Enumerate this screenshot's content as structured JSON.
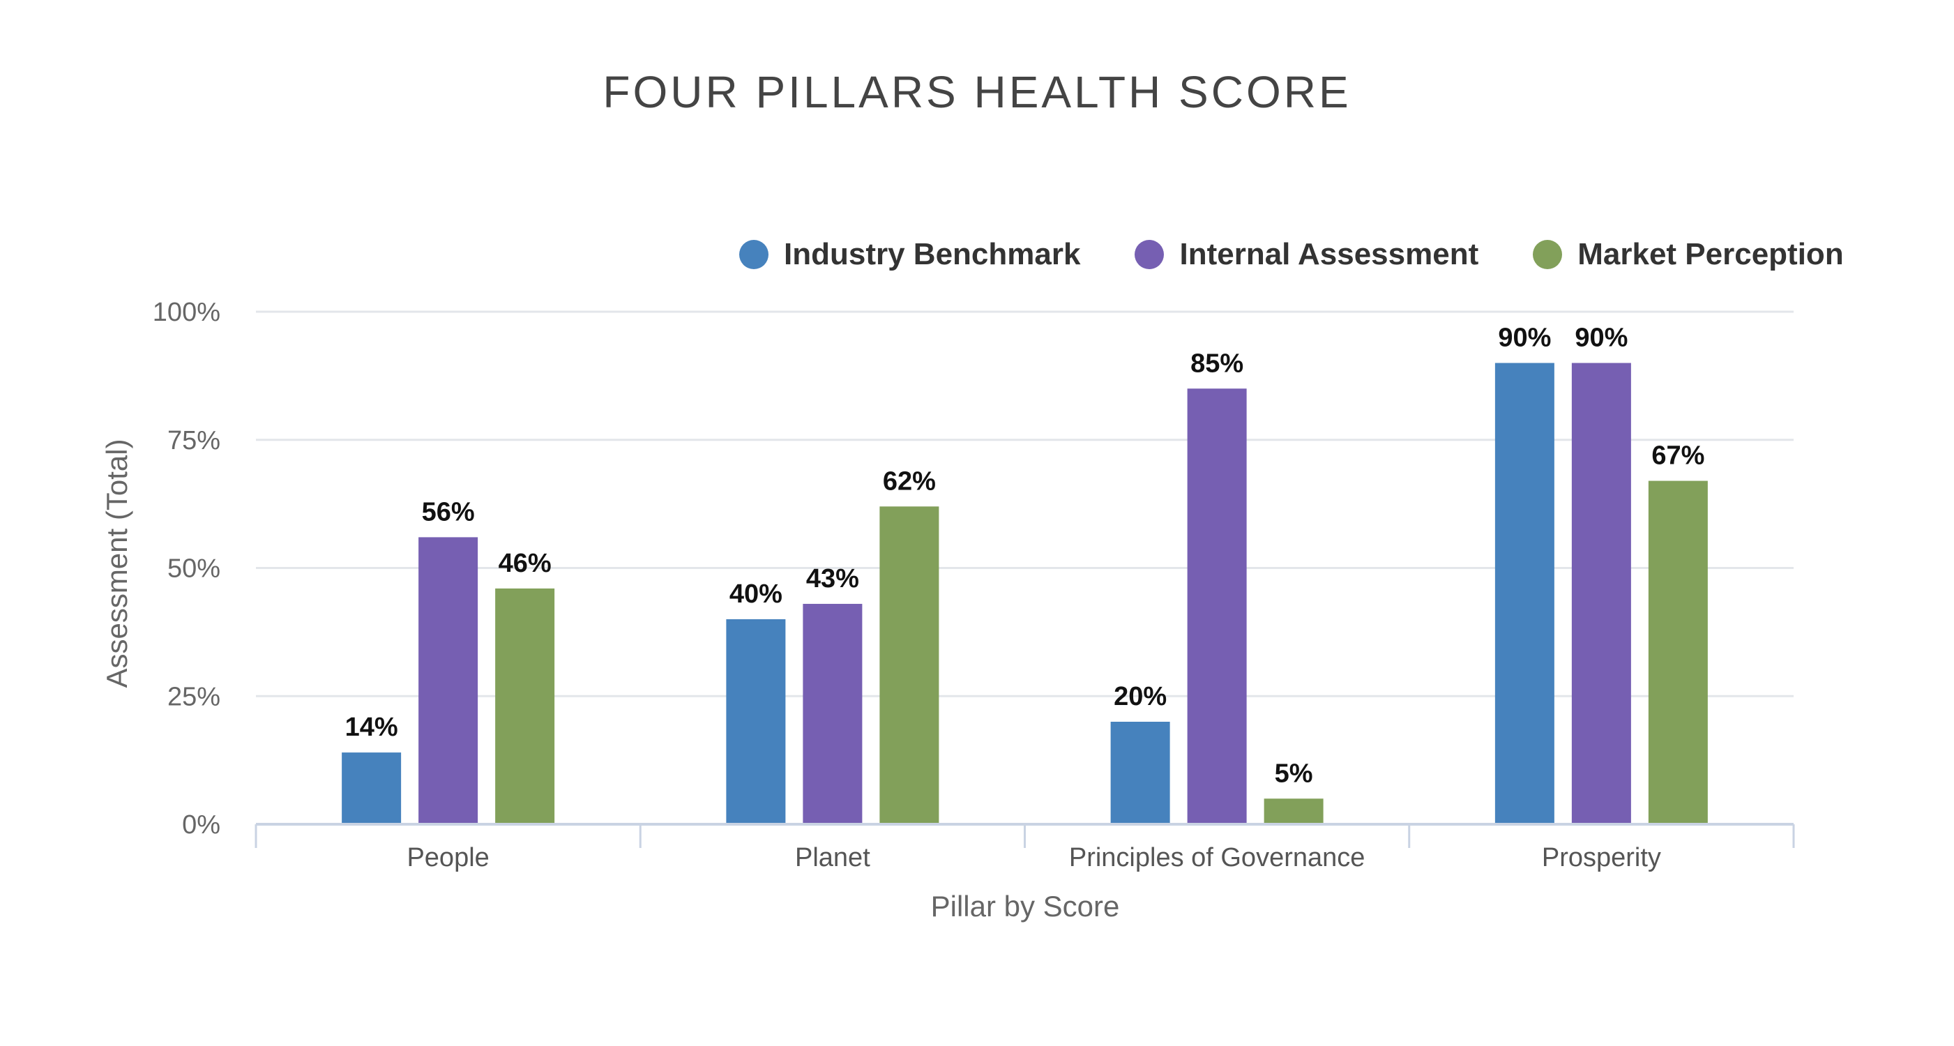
{
  "chart_data": {
    "type": "bar",
    "title": "FOUR PILLARS HEALTH SCORE",
    "xlabel": "Pillar by Score",
    "ylabel": "Assessment (Total)",
    "categories": [
      "People",
      "Planet",
      "Principles of Governance",
      "Prosperity"
    ],
    "series": [
      {
        "name": "Industry Benchmark",
        "color": "#4682bd",
        "values": [
          14,
          40,
          20,
          90
        ]
      },
      {
        "name": "Internal Assessment",
        "color": "#765fb2",
        "values": [
          56,
          43,
          85,
          90
        ]
      },
      {
        "name": "Market Perception",
        "color": "#82a05a",
        "values": [
          46,
          62,
          5,
          67
        ]
      }
    ],
    "ylim": [
      0,
      100
    ],
    "yticks": [
      "0%",
      "25%",
      "50%",
      "75%",
      "100%"
    ],
    "value_suffix": "%",
    "grid": true,
    "legend_position": "top-right"
  }
}
